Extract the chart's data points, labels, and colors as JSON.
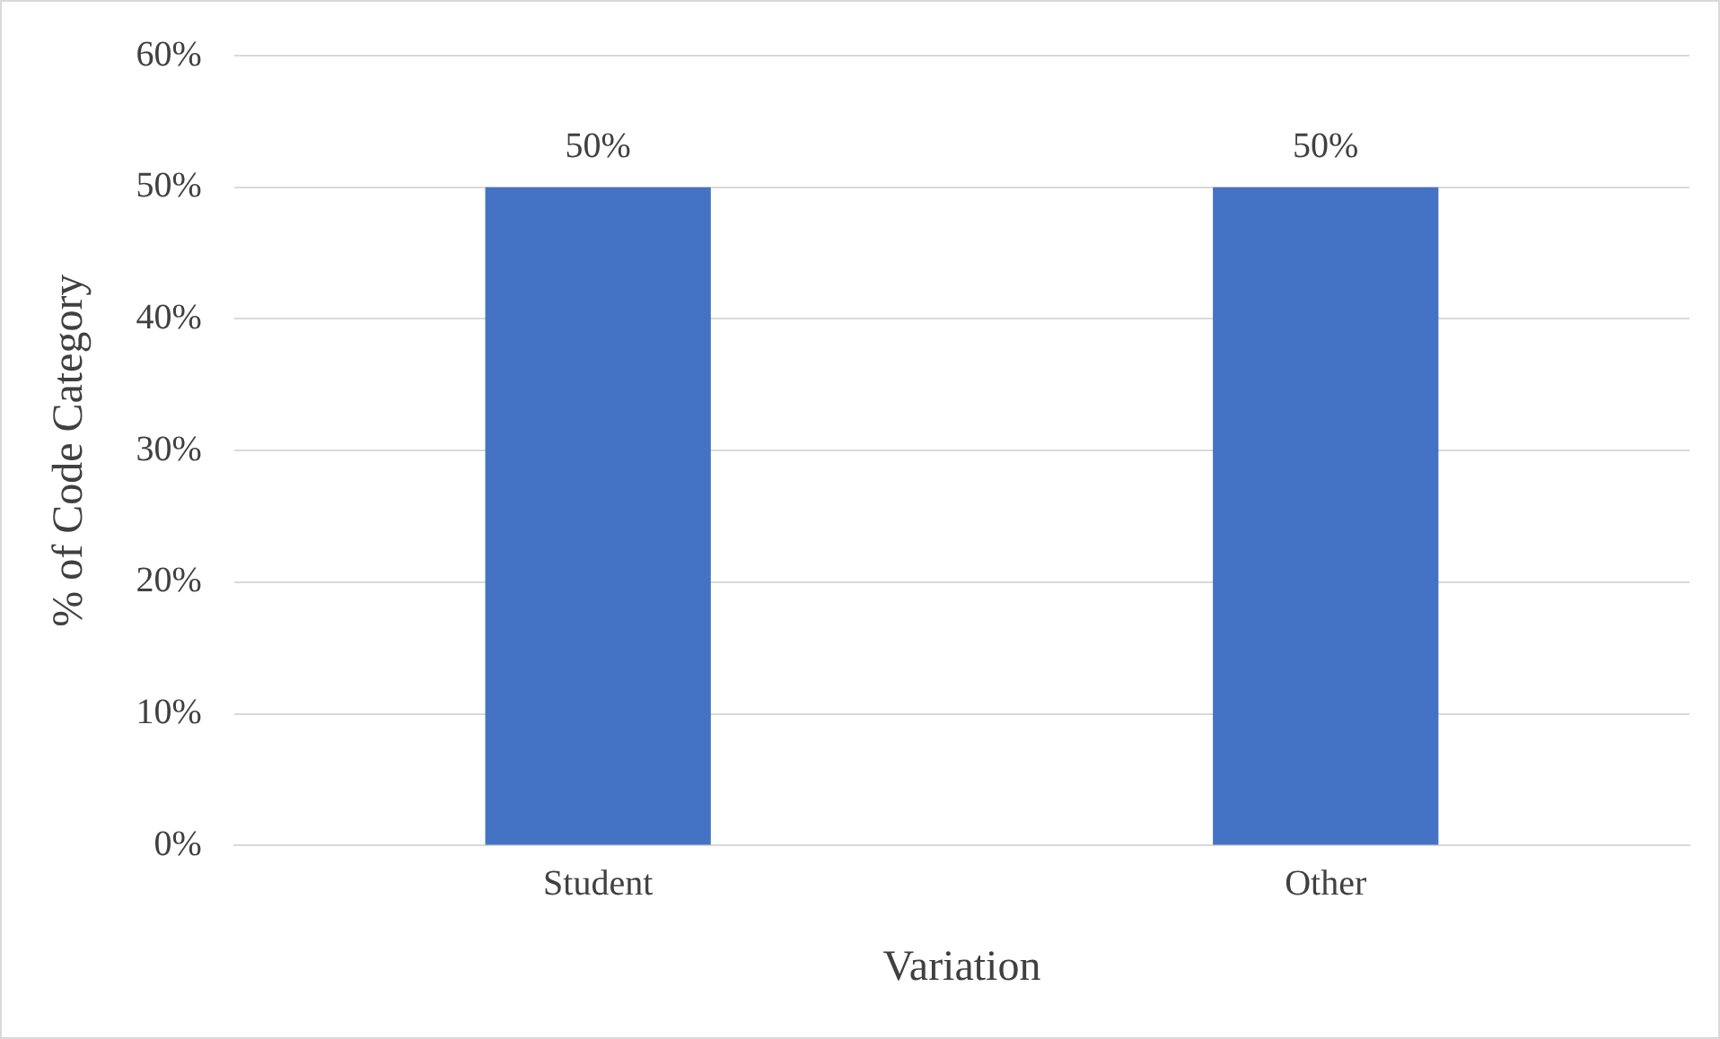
{
  "chart_data": {
    "type": "bar",
    "xlabel": "Variation",
    "ylabel": "% of Code Category",
    "categories": [
      "Student",
      "Other"
    ],
    "values": [
      50,
      50
    ],
    "color": "#4472c4",
    "value_labels": [
      "50%",
      "50%"
    ],
    "ylim": [
      0,
      60
    ],
    "yticks": [
      {
        "value": 0,
        "label": "0%"
      },
      {
        "value": 10,
        "label": "10%"
      },
      {
        "value": 20,
        "label": "20%"
      },
      {
        "value": 30,
        "label": "30%"
      },
      {
        "value": 40,
        "label": "40%"
      },
      {
        "value": 50,
        "label": "50%"
      },
      {
        "value": 60,
        "label": "60%"
      }
    ],
    "grid": "y",
    "legend": false
  }
}
